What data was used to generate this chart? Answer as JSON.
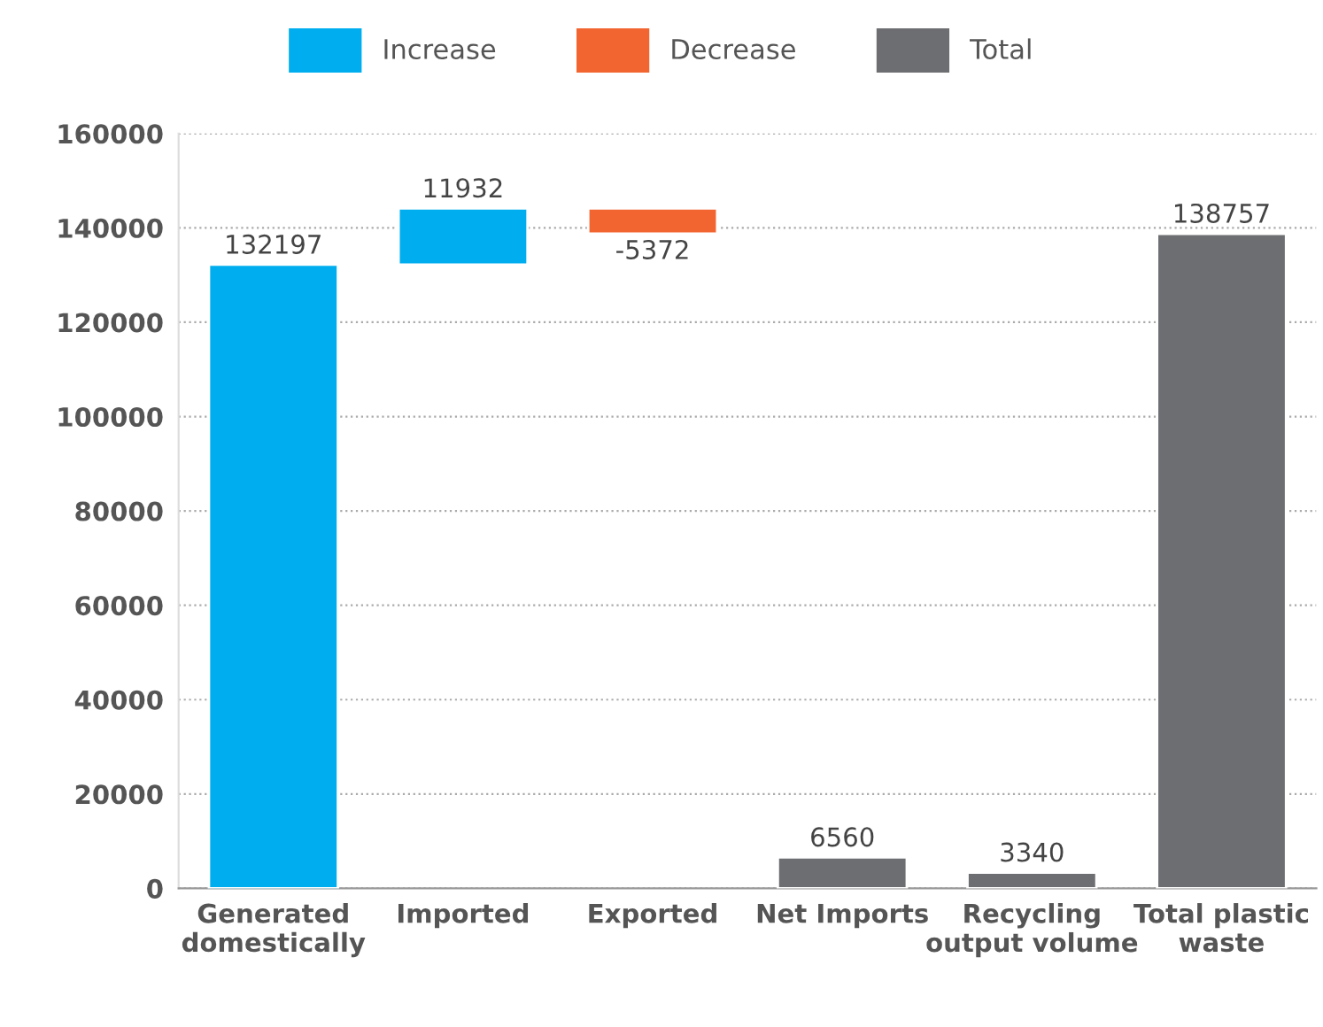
{
  "chart_data": {
    "type": "bar",
    "categories": [
      "Generated domestically",
      "Imported",
      "Exported",
      "Net Imports",
      "Recycling output volume",
      "Total plastic waste"
    ],
    "series": [
      {
        "name": "Increase",
        "color": "#00aeef",
        "values": [
          132197,
          11932,
          null,
          null,
          null,
          null
        ],
        "base": [
          0,
          132197,
          null,
          null,
          null,
          null
        ]
      },
      {
        "name": "Decrease",
        "color": "#f26531",
        "values": [
          null,
          null,
          -5372,
          null,
          null,
          null
        ],
        "base": [
          null,
          null,
          144129,
          null,
          null,
          null
        ]
      },
      {
        "name": "Total",
        "color": "#6d6e71",
        "values": [
          null,
          null,
          null,
          6560,
          3340,
          138757
        ],
        "base": [
          null,
          null,
          null,
          0,
          0,
          0
        ]
      }
    ],
    "ylim": [
      0,
      160000
    ],
    "yticks": [
      0,
      20000,
      40000,
      60000,
      80000,
      100000,
      120000,
      140000,
      160000
    ],
    "grid": "y",
    "legend": "top",
    "data_labels": true
  }
}
